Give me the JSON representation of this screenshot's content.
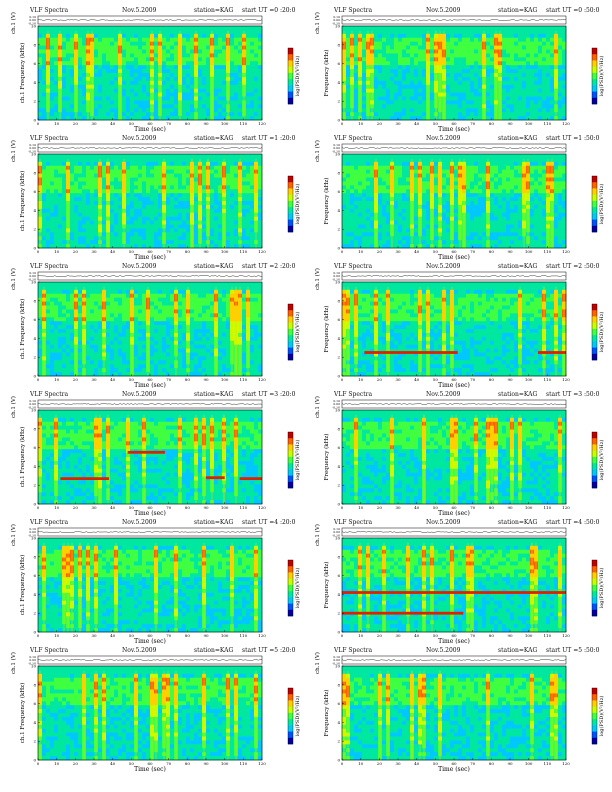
{
  "chart_data": {
    "type": "heatmap",
    "common": {
      "title": "VLF Spectra",
      "date": "Nov.5.2009",
      "station": "station=KAG",
      "start_label": "start",
      "ut_prefix": "UT",
      "top_ylabel": "ch.1 (V)",
      "top_ticks": [
        "0.10",
        "0.00",
        "-0.10"
      ],
      "ylabel": "Frequency (kHz)",
      "ylabel_left_prefix": "ch.1",
      "xlabel": "Time (sec)",
      "xticks": [
        0,
        10,
        20,
        30,
        40,
        50,
        60,
        70,
        80,
        90,
        100,
        110,
        120
      ],
      "yticks": [
        0,
        2,
        4,
        6,
        8,
        10
      ],
      "xlim": [
        0,
        120
      ],
      "ylim": [
        0,
        10
      ],
      "colorbar_label": "log(PSD)(V²/Hz)",
      "colorscale": [
        "#0000a0",
        "#0050ff",
        "#00c8ff",
        "#00e8a0",
        "#40ff40",
        "#c8ff00",
        "#ffd000",
        "#ff6000",
        "#c00000"
      ]
    },
    "panels": [
      {
        "start_ut": "=0 :20:0",
        "bands": []
      },
      {
        "start_ut": "=0 :50:0",
        "bands": []
      },
      {
        "start_ut": "=1 :20:0",
        "bands": []
      },
      {
        "start_ut": "=1 :50:0",
        "bands": []
      },
      {
        "start_ut": "=2 :20:0",
        "bands": []
      },
      {
        "start_ut": "=2 :50:0",
        "bands": [
          {
            "t0": 12,
            "t1": 62,
            "f": 2.5
          },
          {
            "t0": 105,
            "t1": 120,
            "f": 2.5
          }
        ]
      },
      {
        "start_ut": "=3 :20:0",
        "bands": [
          {
            "t0": 12,
            "t1": 38,
            "f": 2.7
          },
          {
            "t0": 48,
            "t1": 68,
            "f": 5.5
          },
          {
            "t0": 90,
            "t1": 100,
            "f": 2.8
          },
          {
            "t0": 108,
            "t1": 120,
            "f": 2.7
          }
        ]
      },
      {
        "start_ut": "=3 :50:0",
        "bands": []
      },
      {
        "start_ut": "=4 :20:0",
        "bands": []
      },
      {
        "start_ut": "=4 :50:0",
        "bands": [
          {
            "t0": 0,
            "t1": 65,
            "f": 2.0
          },
          {
            "t0": 0,
            "t1": 120,
            "f": 4.2
          }
        ]
      },
      {
        "start_ut": "=5 :20:0",
        "bands": []
      },
      {
        "start_ut": "=5 :50:0",
        "bands": []
      }
    ]
  }
}
